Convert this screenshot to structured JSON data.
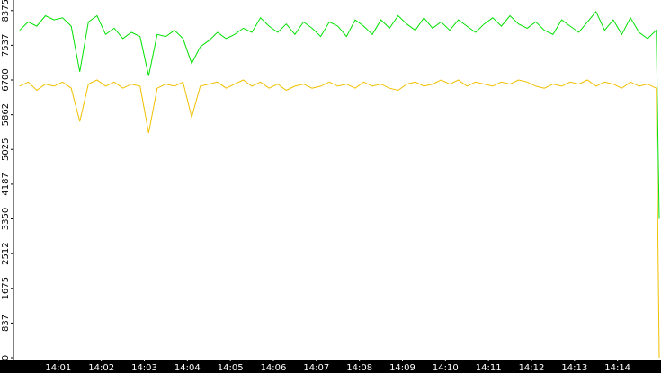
{
  "chart_data": {
    "type": "line",
    "x": [
      0.1,
      0.3,
      0.5,
      0.7,
      0.9,
      1.1,
      1.3,
      1.5,
      1.7,
      1.9,
      2.1,
      2.3,
      2.5,
      2.7,
      2.9,
      3.1,
      3.3,
      3.5,
      3.7,
      3.9,
      4.1,
      4.3,
      4.5,
      4.7,
      4.9,
      5.1,
      5.3,
      5.5,
      5.7,
      5.9,
      6.1,
      6.3,
      6.5,
      6.7,
      6.9,
      7.1,
      7.3,
      7.5,
      7.7,
      7.9,
      8.1,
      8.3,
      8.5,
      8.7,
      8.9,
      9.1,
      9.3,
      9.5,
      9.7,
      9.9,
      10.1,
      10.3,
      10.5,
      10.7,
      10.9,
      11.1,
      11.3,
      11.5,
      11.7,
      11.9,
      12.1,
      12.3,
      12.5,
      12.7,
      12.9,
      13.1,
      13.3,
      13.5,
      13.7,
      13.9,
      14.1,
      14.3,
      14.5,
      14.7,
      14.9,
      14.97
    ],
    "series": [
      {
        "color": "#00e000",
        "values": [
          7900,
          8100,
          8000,
          8250,
          8150,
          8200,
          8000,
          6900,
          8100,
          8250,
          7800,
          7950,
          7700,
          7850,
          7750,
          6800,
          7800,
          7750,
          7900,
          7700,
          7100,
          7500,
          7650,
          7850,
          7700,
          7800,
          7950,
          7850,
          8200,
          8000,
          7850,
          8050,
          7800,
          8100,
          7950,
          7750,
          8100,
          8000,
          7750,
          8150,
          8000,
          7800,
          8150,
          7950,
          8250,
          8050,
          7900,
          8200,
          7950,
          8100,
          7900,
          8150,
          8000,
          7850,
          8050,
          8200,
          8000,
          8250,
          8050,
          7950,
          8100,
          7900,
          7800,
          8150,
          8000,
          7850,
          8100,
          8350,
          7900,
          8150,
          7800,
          8200,
          7850,
          7700,
          7900,
          3350
        ]
      },
      {
        "color": "#f0c000",
        "values": [
          6550,
          6650,
          6450,
          6600,
          6550,
          6650,
          6500,
          5700,
          6600,
          6700,
          6550,
          6650,
          6500,
          6600,
          6550,
          5420,
          6500,
          6600,
          6550,
          6650,
          5800,
          6550,
          6600,
          6650,
          6500,
          6600,
          6700,
          6550,
          6650,
          6500,
          6600,
          6450,
          6550,
          6600,
          6500,
          6550,
          6650,
          6550,
          6600,
          6500,
          6650,
          6550,
          6600,
          6500,
          6450,
          6600,
          6650,
          6550,
          6600,
          6700,
          6600,
          6700,
          6550,
          6650,
          6600,
          6550,
          6650,
          6600,
          6700,
          6650,
          6550,
          6500,
          6600,
          6550,
          6650,
          6600,
          6700,
          6550,
          6650,
          6600,
          6500,
          6650,
          6550,
          6600,
          6500,
          0
        ]
      }
    ],
    "xlim": [
      0,
      14.99
    ],
    "xticks": [
      {
        "value": 1,
        "label": "14:01"
      },
      {
        "value": 2,
        "label": "14:02"
      },
      {
        "value": 3,
        "label": "14:03"
      },
      {
        "value": 4,
        "label": "14:04"
      },
      {
        "value": 5,
        "label": "14:05"
      },
      {
        "value": 6,
        "label": "14:06"
      },
      {
        "value": 7,
        "label": "14:07"
      },
      {
        "value": 8,
        "label": "14:08"
      },
      {
        "value": 9,
        "label": "14:09"
      },
      {
        "value": 10,
        "label": "14:10"
      },
      {
        "value": 11,
        "label": "14:11"
      },
      {
        "value": 12,
        "label": "14:12"
      },
      {
        "value": 13,
        "label": "14:13"
      },
      {
        "value": 14,
        "label": "14:14"
      }
    ],
    "ylim": [
      0,
      8630
    ],
    "yticks": [
      0,
      837,
      1675,
      2512,
      3350,
      4187,
      5025,
      5862,
      6700,
      7537,
      8375
    ]
  }
}
